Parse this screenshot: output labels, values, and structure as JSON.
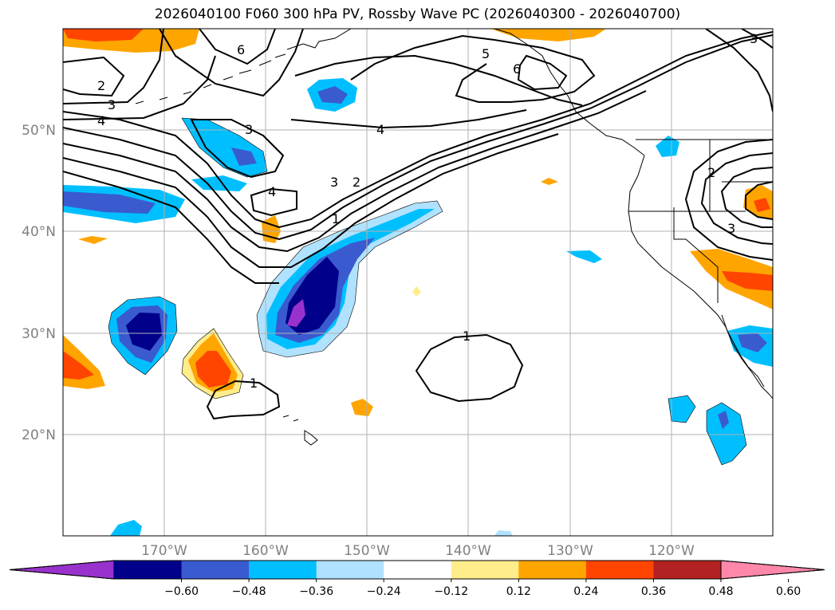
{
  "title": "2026040100 F060 300 hPa PV, Rossby Wave PC (2026040300 - 2026040700)",
  "lat_labels": [
    "50°N",
    "40°N",
    "30°N",
    "20°N"
  ],
  "lon_labels": [
    "170°W",
    "160°W",
    "150°W",
    "140°W",
    "130°W",
    "120°W"
  ],
  "colorbar": {
    "colors": [
      "#9932CC",
      "#00008B",
      "#3A5BCF",
      "#00BFFF",
      "#B0E2FF",
      "#FFFFFF",
      "#FFEC8B",
      "#FFA500",
      "#FF4500",
      "#B22222",
      "#FF88AA"
    ],
    "tick_labels": [
      "−0.60",
      "−0.48",
      "−0.36",
      "−0.24",
      "−0.12",
      "0.12",
      "0.24",
      "0.36",
      "0.48",
      "0.60"
    ]
  },
  "contour_labels": [
    "6",
    "5",
    "6",
    "2",
    "3",
    "4",
    "3",
    "3",
    "2",
    "4",
    "4",
    "1",
    "1",
    "1",
    "2",
    "3",
    "3"
  ]
}
